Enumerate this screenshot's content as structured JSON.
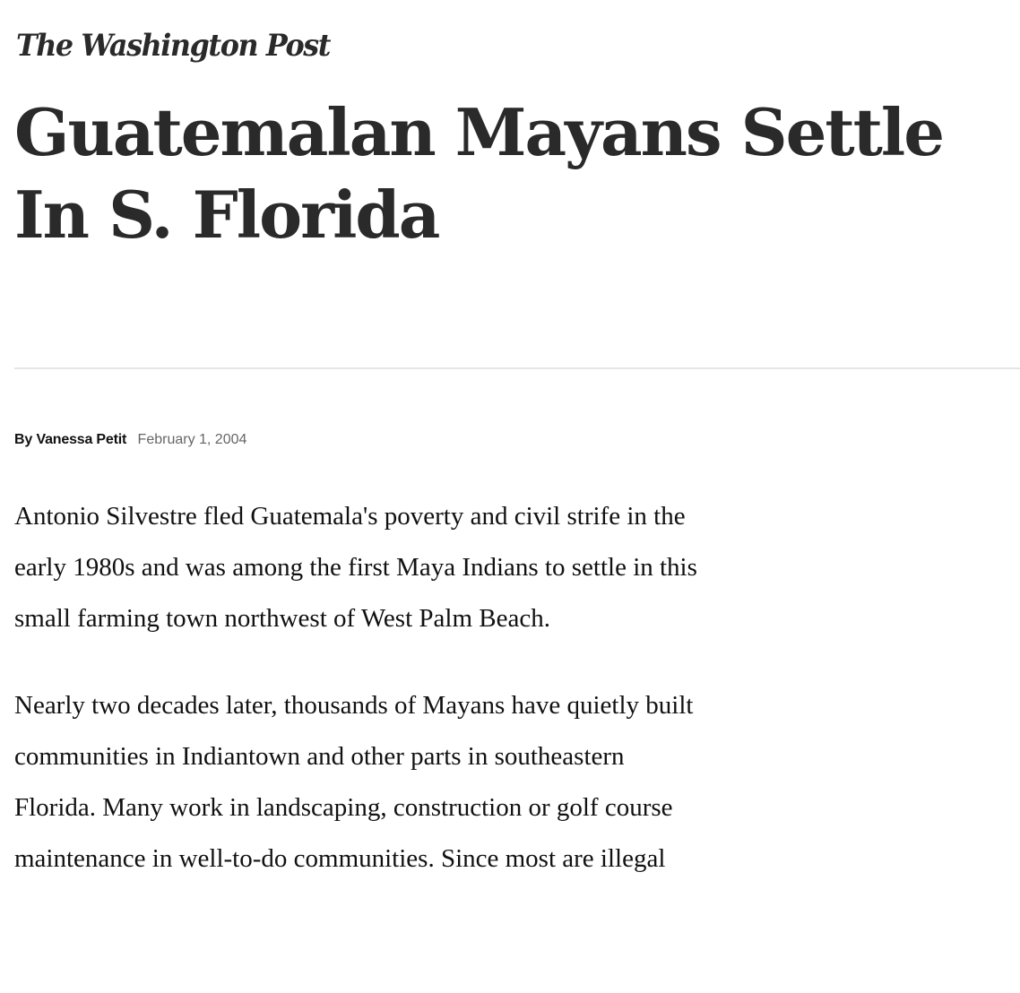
{
  "masthead": {
    "logo_text": "The Washington Post"
  },
  "article": {
    "headline": "Guatemalan Mayans Settle In S. Florida",
    "byline_prefix": "By",
    "author": "Vanessa Petit",
    "date": "February 1, 2004",
    "paragraphs": [
      "Antonio Silvestre fled Guatemala's poverty and civil strife in the early 1980s and was among the first Maya Indians to settle in this small farming town northwest of West Palm Beach.",
      "Nearly two decades later, thousands of Mayans have quietly built communities in Indiantown and other parts in southeastern Florida. Many work in landscaping, construction or golf course maintenance in well-to-do communities. Since most are illegal"
    ]
  },
  "colors": {
    "text": "#111111",
    "headline": "#2a2a2a",
    "date": "#666666",
    "divider": "#e5e5e5"
  }
}
